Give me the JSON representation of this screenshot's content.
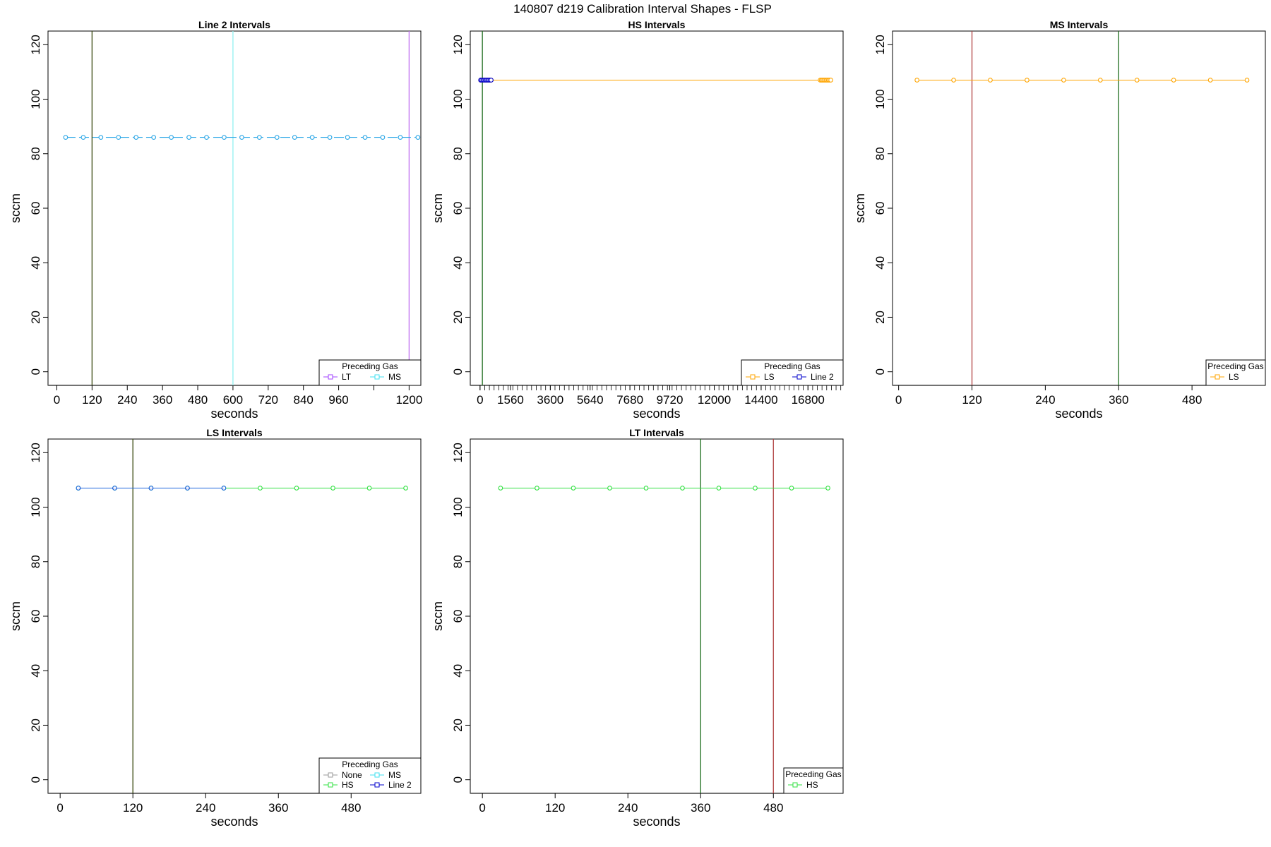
{
  "figure_title": "140807   d219   Calibration Interval Shapes - FLSP",
  "colors": {
    "LT": "#a040ff",
    "MS": "#40e0f0",
    "LS": "#ffa500",
    "Line 2": "#0000cc",
    "HS": "#30e040",
    "None": "#999999",
    "line2_series": "#2aa6e6",
    "hs_series": "#ffa500",
    "vline_dark_olive": "#3a4a10",
    "vline_cyan": "#90f0f0",
    "vline_purple": "#c070f0",
    "vline_green": "#1e6e1e",
    "vline_red": "#b04040"
  },
  "chart_data": [
    {
      "type": "line",
      "title": "Line 2 Intervals",
      "xlabel": "seconds",
      "ylabel": "sccm",
      "xlim": [
        -30,
        1240
      ],
      "ylim": [
        -5,
        125
      ],
      "xticks": [
        0,
        120,
        240,
        360,
        480,
        600,
        720,
        840,
        960,
        1080,
        1200
      ],
      "xtick_labels": [
        "0",
        "120",
        "240",
        "360",
        "480",
        "600",
        "720",
        "840",
        "960",
        "",
        "1200"
      ],
      "yticks": [
        0,
        20,
        40,
        60,
        80,
        100,
        120
      ],
      "vlines": [
        {
          "x": 120,
          "color": "vline_dark_olive"
        },
        {
          "x": 600,
          "color": "vline_cyan"
        },
        {
          "x": 1200,
          "color": "vline_purple"
        }
      ],
      "series": [
        {
          "color": "line2_series",
          "dashed": true,
          "x": [
            30,
            90,
            150,
            210,
            270,
            330,
            390,
            450,
            510,
            570,
            630,
            690,
            750,
            810,
            870,
            930,
            990,
            1050,
            1110,
            1170,
            1230
          ],
          "y": [
            86,
            86,
            86,
            86,
            86,
            86,
            86,
            86,
            86,
            86,
            86,
            86,
            86,
            86,
            86,
            86,
            86,
            86,
            86,
            86,
            86
          ]
        }
      ],
      "legend": {
        "title": "Preceding Gas",
        "placement": "bottom-right",
        "columns": 2,
        "items": [
          {
            "label": "LT",
            "color": "LT"
          },
          {
            "label": "MS",
            "color": "MS"
          }
        ]
      }
    },
    {
      "type": "line",
      "title": "HS Intervals",
      "xlabel": "seconds",
      "ylabel": "sccm",
      "xlim": [
        -500,
        18600
      ],
      "ylim": [
        -5,
        125
      ],
      "xticks": [
        0,
        1560,
        3600,
        5640,
        7680,
        9720,
        12000,
        14400,
        16800
      ],
      "xtick_labels": [
        "0",
        "1560",
        "3600",
        "5640",
        "7680",
        "9720",
        "12000",
        "14400",
        "16800"
      ],
      "minor_tick_step": 240,
      "yticks": [
        0,
        20,
        40,
        60,
        80,
        100,
        120
      ],
      "vlines": [
        {
          "x": 120,
          "color": "vline_green"
        }
      ],
      "series": [
        {
          "color": "hs_series",
          "dashed": false,
          "x": [
            30,
            90,
            150,
            210,
            270,
            330,
            390,
            450,
            510,
            570,
            17430,
            17490,
            17550,
            17610,
            17670,
            17730,
            17790,
            17850,
            17910,
            17970
          ],
          "y": [
            107,
            107,
            107,
            107,
            107,
            107,
            107,
            107,
            107,
            107,
            107,
            107,
            107,
            107,
            107,
            107,
            107,
            107,
            107,
            107
          ]
        },
        {
          "color": "Line 2",
          "dashed": false,
          "x": [
            30,
            90,
            150,
            210,
            270,
            330,
            390,
            450,
            510,
            570
          ],
          "y": [
            107,
            107,
            107,
            107,
            107,
            107,
            107,
            107,
            107,
            107
          ]
        }
      ],
      "legend": {
        "title": "Preceding Gas",
        "placement": "bottom-right",
        "columns": 2,
        "items": [
          {
            "label": "LS",
            "color": "LS"
          },
          {
            "label": "Line 2",
            "color": "Line 2"
          }
        ]
      }
    },
    {
      "type": "line",
      "title": "MS Intervals",
      "xlabel": "seconds",
      "ylabel": "sccm",
      "xlim": [
        -10,
        600
      ],
      "ylim": [
        -5,
        125
      ],
      "xticks": [
        0,
        120,
        240,
        360,
        480
      ],
      "xtick_labels": [
        "0",
        "120",
        "240",
        "360",
        "480"
      ],
      "yticks": [
        0,
        20,
        40,
        60,
        80,
        100,
        120
      ],
      "vlines": [
        {
          "x": 120,
          "color": "vline_red"
        },
        {
          "x": 360,
          "color": "vline_green"
        }
      ],
      "series": [
        {
          "color": "LS",
          "dashed": false,
          "x": [
            30,
            90,
            150,
            210,
            270,
            330,
            390,
            450,
            510,
            570
          ],
          "y": [
            107,
            107,
            107,
            107,
            107,
            107,
            107,
            107,
            107,
            107
          ]
        }
      ],
      "legend": {
        "title": "Preceding Gas",
        "placement": "bottom-right",
        "columns": 1,
        "items": [
          {
            "label": "LS",
            "color": "LS"
          }
        ]
      }
    },
    {
      "type": "line",
      "title": "LS Intervals",
      "xlabel": "seconds",
      "ylabel": "sccm",
      "xlim": [
        -20,
        595
      ],
      "ylim": [
        -5,
        125
      ],
      "xticks": [
        0,
        120,
        240,
        360,
        480
      ],
      "xtick_labels": [
        "0",
        "120",
        "240",
        "360",
        "480"
      ],
      "yticks": [
        0,
        20,
        40,
        60,
        80,
        100,
        120
      ],
      "vlines": [
        {
          "x": 120,
          "color": "vline_dark_olive"
        }
      ],
      "series": [
        {
          "color": "HS",
          "dashed": false,
          "x": [
            30,
            90,
            150,
            210,
            270,
            330,
            390,
            450,
            510,
            570
          ],
          "y": [
            107,
            107,
            107,
            107,
            107,
            107,
            107,
            107,
            107,
            107
          ]
        },
        {
          "color": "MS",
          "dashed": false,
          "x": [
            30,
            90,
            150,
            210,
            270
          ],
          "y": [
            107,
            107,
            107,
            107,
            107
          ]
        },
        {
          "color": "Line 2",
          "dashed": false,
          "opacity": 0.55,
          "x": [
            30,
            90,
            150,
            210,
            270
          ],
          "y": [
            107,
            107,
            107,
            107,
            107
          ]
        }
      ],
      "legend": {
        "title": "Preceding Gas",
        "placement": "bottom-right",
        "columns": 2,
        "items": [
          {
            "label": "None",
            "color": "None"
          },
          {
            "label": "MS",
            "color": "MS"
          },
          {
            "label": "HS",
            "color": "HS"
          },
          {
            "label": "Line 2",
            "color": "Line 2"
          }
        ]
      }
    },
    {
      "type": "line",
      "title": "LT Intervals",
      "xlabel": "seconds",
      "ylabel": "sccm",
      "xlim": [
        -20,
        595
      ],
      "ylim": [
        -5,
        125
      ],
      "xticks": [
        0,
        120,
        240,
        360,
        480
      ],
      "xtick_labels": [
        "0",
        "120",
        "240",
        "360",
        "480"
      ],
      "yticks": [
        0,
        20,
        40,
        60,
        80,
        100,
        120
      ],
      "vlines": [
        {
          "x": 360,
          "color": "vline_green"
        },
        {
          "x": 480,
          "color": "vline_red"
        }
      ],
      "series": [
        {
          "color": "HS",
          "dashed": false,
          "x": [
            30,
            90,
            150,
            210,
            270,
            330,
            390,
            450,
            510,
            570
          ],
          "y": [
            107,
            107,
            107,
            107,
            107,
            107,
            107,
            107,
            107,
            107
          ]
        }
      ],
      "legend": {
        "title": "Preceding Gas",
        "placement": "bottom-right",
        "columns": 1,
        "items": [
          {
            "label": "HS",
            "color": "HS"
          }
        ]
      }
    }
  ]
}
